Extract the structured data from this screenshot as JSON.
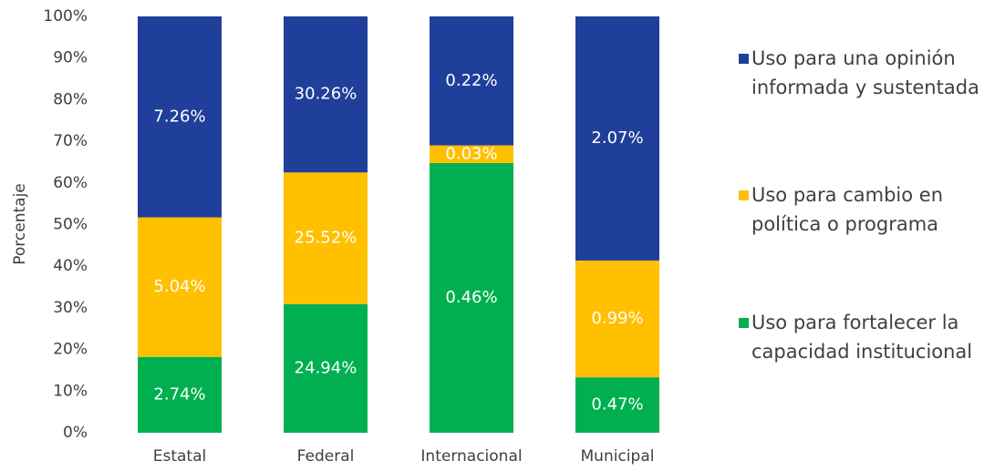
{
  "chart_data": {
    "type": "bar",
    "stacked": "percent",
    "ylabel": "Porcentaje",
    "categories": [
      "Estatal",
      "Federal",
      "Internacional",
      "Municipal"
    ],
    "series": [
      {
        "name": "Uso para fortalecer la capacidad institucional",
        "color": "#00b050",
        "values": [
          2.74,
          24.94,
          0.46,
          0.47
        ],
        "value_labels": [
          "2.74%",
          "24.94%",
          "0.46%",
          "0.47%"
        ]
      },
      {
        "name": "Uso para cambio en política o programa",
        "color": "#ffc000",
        "values": [
          5.04,
          25.52,
          0.03,
          0.99
        ],
        "value_labels": [
          "5.04%",
          "25.52%",
          "0.03%",
          "0.99%"
        ]
      },
      {
        "name": "Uso para una opinión informada y sustentada",
        "color": "#203f9a",
        "values": [
          7.26,
          30.26,
          0.22,
          2.07
        ],
        "value_labels": [
          "7.26%",
          "30.26%",
          "0.22%",
          "2.07%"
        ]
      }
    ],
    "ylim": [
      0,
      100
    ],
    "yticks": [
      {
        "value": 0,
        "label": "0%"
      },
      {
        "value": 10,
        "label": "10%"
      },
      {
        "value": 20,
        "label": "20%"
      },
      {
        "value": 30,
        "label": "30%"
      },
      {
        "value": 40,
        "label": "40%"
      },
      {
        "value": 50,
        "label": "50%"
      },
      {
        "value": 60,
        "label": "60%"
      },
      {
        "value": 70,
        "label": "70%"
      },
      {
        "value": 80,
        "label": "80%"
      },
      {
        "value": 90,
        "label": "90%"
      },
      {
        "value": 100,
        "label": "100%"
      }
    ],
    "legend": "right",
    "grid": false
  }
}
